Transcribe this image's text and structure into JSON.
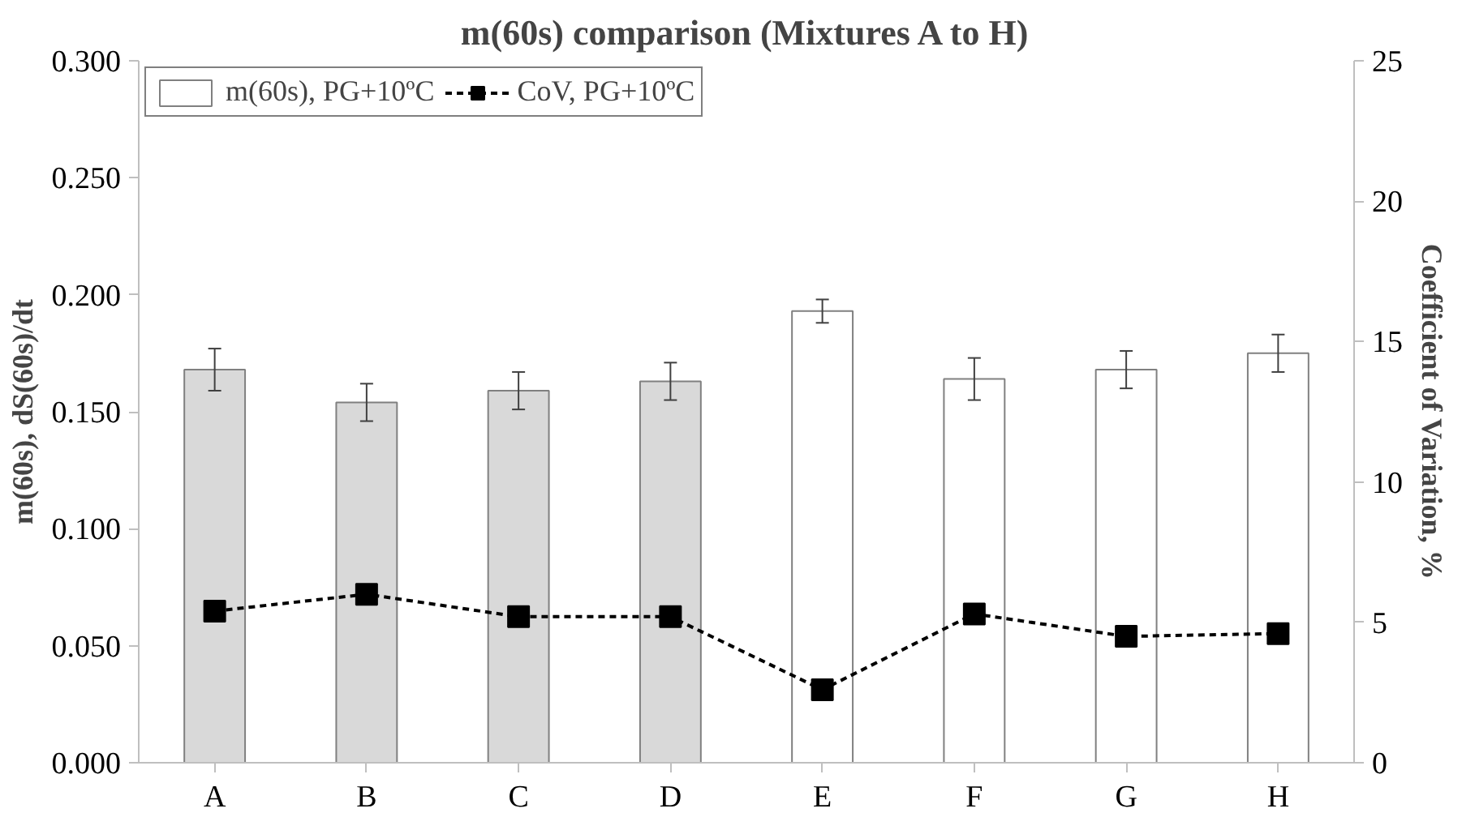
{
  "chart_data": {
    "type": "bar",
    "title": "m(60s) comparison (Mixtures A to H)",
    "ylabel": "m(60s), dS(60s)/dt",
    "y2label": "Coefficient of Variation, %",
    "categories": [
      "A",
      "B",
      "C",
      "D",
      "E",
      "F",
      "G",
      "H"
    ],
    "series": [
      {
        "name": "m(60s), PG+10ºC",
        "color": "#ffffff",
        "colors": [
          "#d9d9d9",
          "#d9d9d9",
          "#d9d9d9",
          "#d9d9d9",
          "#ffffff",
          "#ffffff",
          "#ffffff",
          "#ffffff"
        ],
        "values": [
          0.168,
          0.154,
          0.159,
          0.163,
          0.193,
          0.164,
          0.168,
          0.175
        ],
        "errors": [
          0.009,
          0.008,
          0.008,
          0.008,
          0.005,
          0.009,
          0.008,
          0.008
        ]
      },
      {
        "name": "CoV, PG+10ºC",
        "type": "line",
        "axis": "y2",
        "color": "#000000",
        "marker": "square",
        "line_style": "dashed",
        "values": [
          5.4,
          6.0,
          5.2,
          5.2,
          2.6,
          5.3,
          4.5,
          4.6
        ]
      }
    ],
    "ylim": [
      0,
      0.3
    ],
    "yticks": [
      {
        "value": 0,
        "label": "0.000"
      },
      {
        "value": 0.05,
        "label": "0.050"
      },
      {
        "value": 0.1,
        "label": "0.100"
      },
      {
        "value": 0.15,
        "label": "0.150"
      },
      {
        "value": 0.2,
        "label": "0.200"
      },
      {
        "value": 0.25,
        "label": "0.250"
      },
      {
        "value": 0.3,
        "label": "0.300"
      }
    ],
    "y2lim": [
      0,
      25
    ],
    "y2ticks": [
      0,
      5,
      10,
      15,
      20,
      25
    ],
    "grid": false,
    "legend": "top left"
  }
}
